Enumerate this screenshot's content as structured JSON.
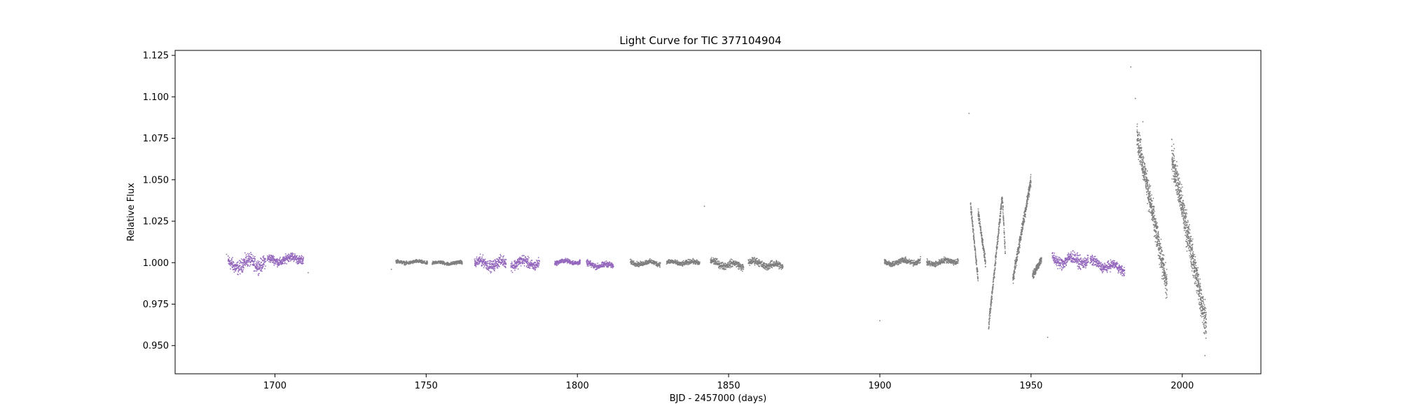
{
  "chart_data": {
    "type": "scatter",
    "title": "Light Curve for TIC 377104904",
    "xlabel": "BJD - 2457000 (days)",
    "ylabel": "Relative Flux",
    "xlim": [
      1667,
      2026
    ],
    "ylim": [
      0.933,
      1.128
    ],
    "xticks": [
      1700,
      1750,
      1800,
      1850,
      1900,
      1950,
      2000
    ],
    "yticks": [
      0.95,
      0.975,
      1.0,
      1.025,
      1.05,
      1.075,
      1.1,
      1.125
    ],
    "grid": false,
    "legend": "none",
    "colors": {
      "gray": "#7f7f7f",
      "purple": "#9467bd"
    },
    "segments": [
      {
        "color": "purple",
        "t0": 1684.5,
        "t1": 1697.0,
        "base": 0.9985,
        "scatter": 0.0028,
        "drift": 0.002
      },
      {
        "color": "purple",
        "t0": 1697.5,
        "t1": 1709.5,
        "base": 1.001,
        "scatter": 0.0018,
        "drift": 0.002
      },
      {
        "color": "gray",
        "t0": 1740.0,
        "t1": 1750.5,
        "base": 1.0003,
        "scatter": 0.0007,
        "drift": 0.0
      },
      {
        "color": "gray",
        "t0": 1752.0,
        "t1": 1762.0,
        "base": 0.9998,
        "scatter": 0.0007,
        "drift": 0.0
      },
      {
        "color": "purple",
        "t0": 1766.0,
        "t1": 1776.5,
        "base": 0.9995,
        "scatter": 0.0022,
        "drift": 0.0
      },
      {
        "color": "purple",
        "t0": 1778.0,
        "t1": 1787.5,
        "base": 0.9998,
        "scatter": 0.0022,
        "drift": 0.0
      },
      {
        "color": "purple",
        "t0": 1792.5,
        "t1": 1801.0,
        "base": 1.0005,
        "scatter": 0.0009,
        "drift": 0.0
      },
      {
        "color": "purple",
        "t0": 1803.0,
        "t1": 1812.0,
        "base": 0.999,
        "scatter": 0.0012,
        "drift": -0.001
      },
      {
        "color": "gray",
        "t0": 1817.5,
        "t1": 1827.5,
        "base": 0.9998,
        "scatter": 0.001,
        "drift": 0.0
      },
      {
        "color": "gray",
        "t0": 1829.5,
        "t1": 1840.5,
        "base": 1.0,
        "scatter": 0.001,
        "drift": 0.0
      },
      {
        "color": "gray",
        "t0": 1844.0,
        "t1": 1855.0,
        "base": 1.0,
        "scatter": 0.0015,
        "drift": -0.002
      },
      {
        "color": "gray",
        "t0": 1856.5,
        "t1": 1868.0,
        "base": 1.0005,
        "scatter": 0.0015,
        "drift": -0.003
      },
      {
        "color": "gray",
        "t0": 1901.5,
        "t1": 1913.5,
        "base": 1.0,
        "scatter": 0.0012,
        "drift": 0.001
      },
      {
        "color": "gray",
        "t0": 1915.5,
        "t1": 1926.0,
        "base": 0.9995,
        "scatter": 0.0012,
        "drift": 0.002
      },
      {
        "color": "purple",
        "t0": 1957.0,
        "t1": 1969.0,
        "base": 1.0015,
        "scatter": 0.0025,
        "drift": 0.0
      },
      {
        "color": "purple",
        "t0": 1969.5,
        "t1": 1981.0,
        "base": 1.0,
        "scatter": 0.002,
        "drift": -0.004
      }
    ],
    "ramps": [
      {
        "color": "gray",
        "t0": 1930.0,
        "t1": 1932.5,
        "y0": 1.035,
        "y1": 0.99,
        "scatter": 0.002
      },
      {
        "color": "gray",
        "t0": 1932.5,
        "t1": 1935.0,
        "y0": 1.03,
        "y1": 1.0,
        "scatter": 0.002
      },
      {
        "color": "gray",
        "t0": 1936.0,
        "t1": 1940.5,
        "y0": 0.962,
        "y1": 1.04,
        "scatter": 0.0025
      },
      {
        "color": "gray",
        "t0": 1940.5,
        "t1": 1941.5,
        "y0": 1.04,
        "y1": 1.005,
        "scatter": 0.002
      },
      {
        "color": "gray",
        "t0": 1944.0,
        "t1": 1950.0,
        "y0": 0.99,
        "y1": 1.05,
        "scatter": 0.0025
      },
      {
        "color": "gray",
        "t0": 1950.5,
        "t1": 1953.5,
        "y0": 0.992,
        "y1": 1.002,
        "scatter": 0.0015
      },
      {
        "color": "gray",
        "t0": 1985.0,
        "t1": 1995.0,
        "y0": 1.078,
        "y1": 0.985,
        "scatter": 0.006
      },
      {
        "color": "gray",
        "t0": 1996.5,
        "t1": 2008.0,
        "y0": 1.065,
        "y1": 0.962,
        "scatter": 0.007
      }
    ],
    "outliers": [
      {
        "x": 1684.0,
        "y": 1.005,
        "color": "gray"
      },
      {
        "x": 1711.0,
        "y": 0.994,
        "color": "gray"
      },
      {
        "x": 1738.5,
        "y": 0.996,
        "color": "gray"
      },
      {
        "x": 1842.0,
        "y": 1.034,
        "color": "gray"
      },
      {
        "x": 1900.0,
        "y": 0.965,
        "color": "gray"
      },
      {
        "x": 1929.5,
        "y": 1.09,
        "color": "gray"
      },
      {
        "x": 1955.5,
        "y": 0.955,
        "color": "gray"
      },
      {
        "x": 1983.0,
        "y": 1.118,
        "color": "gray"
      },
      {
        "x": 1984.5,
        "y": 1.099,
        "color": "gray"
      },
      {
        "x": 1987.0,
        "y": 1.085,
        "color": "gray"
      },
      {
        "x": 2007.5,
        "y": 0.944,
        "color": "gray"
      }
    ]
  }
}
